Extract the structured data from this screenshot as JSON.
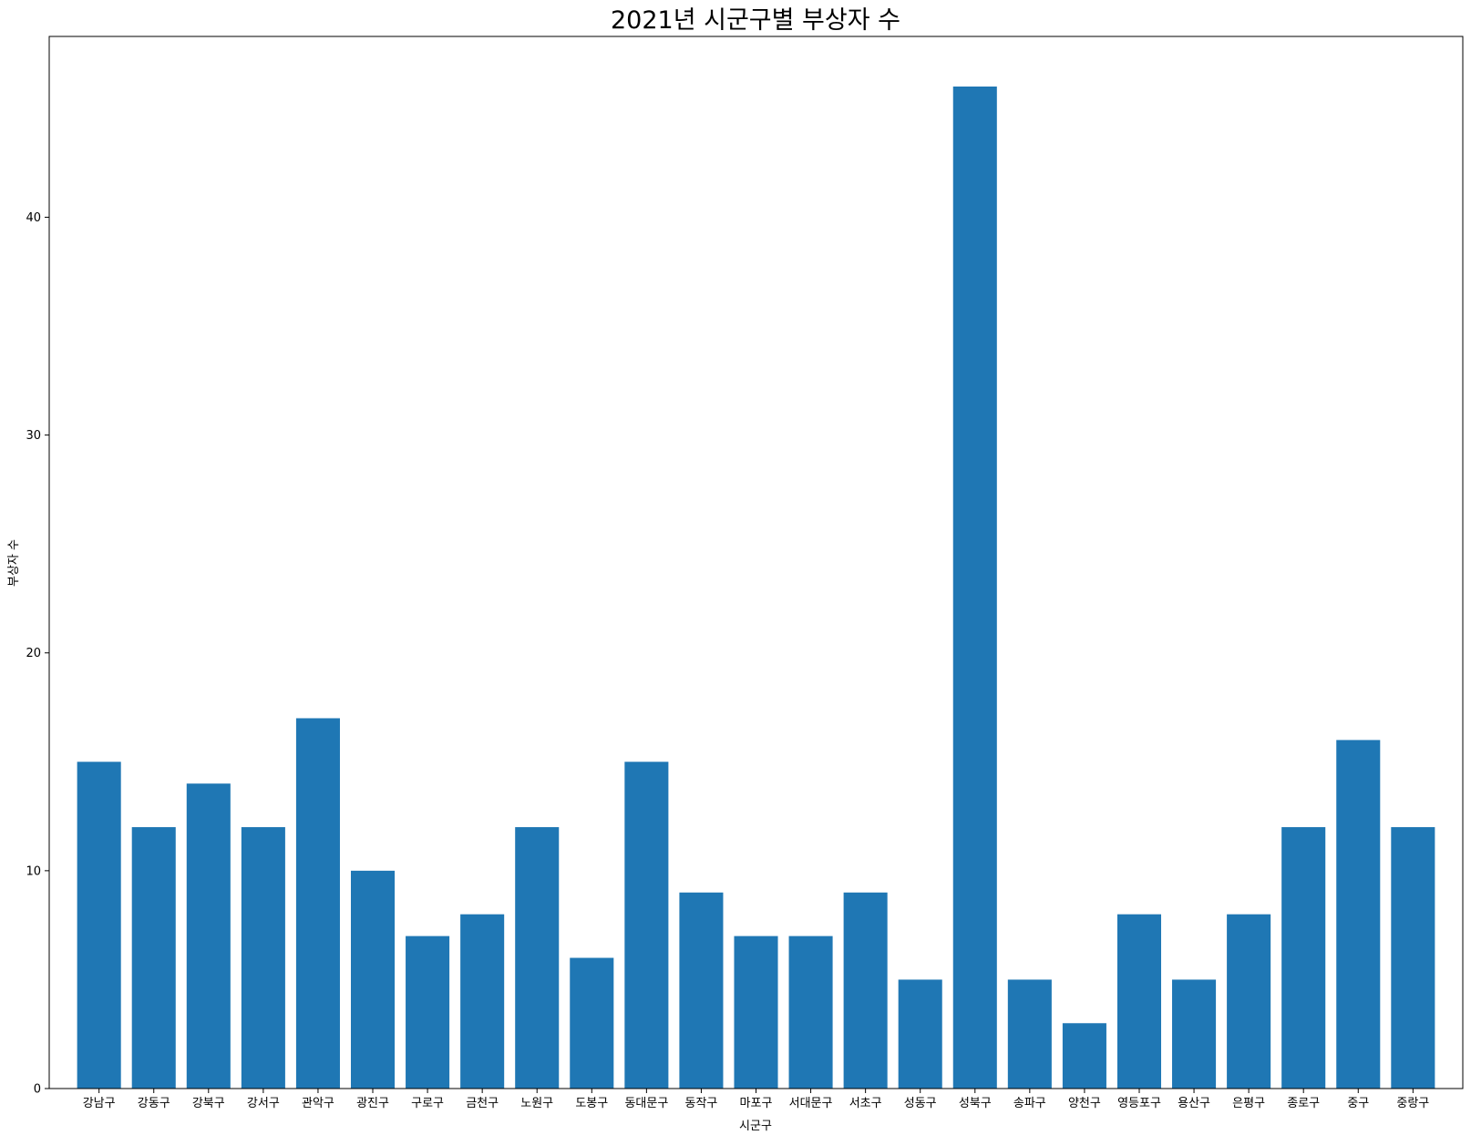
{
  "chart_data": {
    "type": "bar",
    "title": "2021년 시군구별 부상자 수",
    "xlabel": "시군구",
    "ylabel": "부상자 수",
    "categories": [
      "강남구",
      "강동구",
      "강북구",
      "강서구",
      "관악구",
      "광진구",
      "구로구",
      "금천구",
      "노원구",
      "도봉구",
      "동대문구",
      "동작구",
      "마포구",
      "서대문구",
      "서초구",
      "성동구",
      "성북구",
      "송파구",
      "양천구",
      "영등포구",
      "용산구",
      "은평구",
      "종로구",
      "중구",
      "중랑구"
    ],
    "values": [
      15,
      12,
      14,
      12,
      17,
      10,
      7,
      8,
      12,
      6,
      15,
      9,
      7,
      7,
      9,
      5,
      46,
      5,
      3,
      8,
      5,
      8,
      12,
      16,
      12
    ],
    "ylim": [
      0,
      48.3
    ],
    "yticks": [
      "0",
      "10",
      "20",
      "30",
      "40"
    ],
    "grid": false,
    "bar_color": "#1f77b4"
  }
}
